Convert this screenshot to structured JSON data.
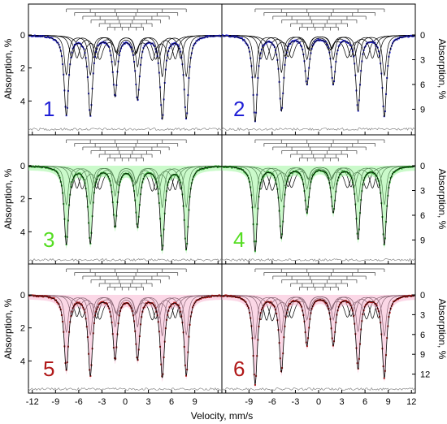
{
  "colors": {
    "spectrum_blue": "#1f1fd6",
    "spectrum_green": "#2a9d2a",
    "green_fill": "#9ef59e",
    "spectrum_red": "#b01818",
    "red_fill": "#f7b7d2",
    "fit": "#000000",
    "residual": "#888888",
    "label_green": "#55dd22"
  },
  "axis": {
    "x_label": "Velocity, mm/s",
    "y_label_left": "Absorption, %",
    "y_label_right": "Absorption, %",
    "x_ticks": [
      -12,
      -9,
      -6,
      -3,
      0,
      3,
      6,
      9,
      12
    ]
  },
  "chart_data": [
    {
      "panel": "1",
      "type": "scatter",
      "color": "blue",
      "ylim": [
        0,
        6
      ],
      "y_ticks": [
        0,
        2,
        4
      ],
      "y_axis_side": "left",
      "xlim": [
        -12.5,
        12.5
      ],
      "x": [
        -7.6,
        -4.5,
        -1.3,
        1.6,
        4.8,
        7.9
      ],
      "y": [
        4.8,
        4.8,
        3.6,
        3.8,
        5.0,
        5.0
      ]
    },
    {
      "panel": "2",
      "type": "scatter",
      "color": "blue",
      "ylim": [
        0,
        12
      ],
      "y_ticks": [
        0,
        3,
        6,
        9
      ],
      "y_axis_side": "right",
      "xlim": [
        -12.5,
        12.5
      ],
      "x": [
        -8.2,
        -4.8,
        -1.5,
        1.9,
        5.1,
        8.5
      ],
      "y": [
        10.4,
        9.0,
        5.8,
        5.8,
        9.0,
        9.8
      ]
    },
    {
      "panel": "3",
      "type": "scatter",
      "color": "green",
      "ylim": [
        0,
        6
      ],
      "y_ticks": [
        0,
        2,
        4
      ],
      "y_axis_side": "left",
      "xlim": [
        -12.5,
        12.5
      ],
      "x": [
        -7.6,
        -4.5,
        -1.3,
        1.6,
        4.8,
        7.9
      ],
      "y": [
        4.7,
        4.6,
        3.6,
        3.6,
        5.0,
        5.0
      ]
    },
    {
      "panel": "4",
      "type": "scatter",
      "color": "green",
      "ylim": [
        0,
        12
      ],
      "y_ticks": [
        0,
        3,
        6,
        9
      ],
      "y_axis_side": "right",
      "xlim": [
        -12.5,
        12.5
      ],
      "x": [
        -8.2,
        -4.8,
        -1.5,
        1.9,
        5.1,
        8.5
      ],
      "y": [
        10.2,
        8.6,
        5.5,
        5.5,
        8.7,
        9.4
      ]
    },
    {
      "panel": "5",
      "type": "scatter",
      "color": "red",
      "ylim": [
        0,
        6
      ],
      "y_ticks": [
        0,
        2,
        4
      ],
      "y_axis_side": "left",
      "xlim": [
        -12.5,
        12.5
      ],
      "x": [
        -7.6,
        -4.5,
        -1.3,
        1.6,
        4.8,
        7.9
      ],
      "y": [
        4.5,
        4.8,
        3.8,
        3.8,
        4.9,
        4.8
      ]
    },
    {
      "panel": "6",
      "type": "scatter",
      "color": "red",
      "ylim": [
        0,
        15
      ],
      "y_ticks": [
        0,
        3,
        6,
        9,
        12
      ],
      "y_axis_side": "right",
      "xlim": [
        -12.5,
        12.5
      ],
      "x": [
        -8.2,
        -4.8,
        -1.5,
        1.9,
        5.1,
        8.5
      ],
      "y": [
        13.4,
        11.4,
        7.4,
        7.4,
        11.0,
        12.4
      ]
    }
  ]
}
